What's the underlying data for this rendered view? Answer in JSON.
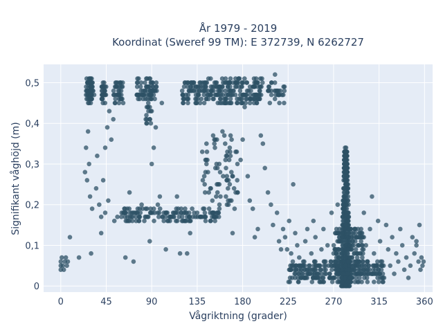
{
  "title_line1": "År 1979 - 2019",
  "title_line2": "Koordinat (Sweref 99 TM): E 372739, N 6262727",
  "colors": {
    "plot_bg": "#e5ecf6",
    "grid": "#ffffff",
    "marker": "#2e5166",
    "text": "#2a3f5f"
  },
  "chart_data": {
    "type": "scatter",
    "xlabel": "Vågriktning (grader)",
    "ylabel": "Signifikant våghöjd (m)",
    "xlim": [
      -17,
      368
    ],
    "ylim": [
      -0.015,
      0.545
    ],
    "xticks": [
      0,
      45,
      90,
      135,
      180,
      225,
      270,
      315,
      360
    ],
    "yticks": [
      0,
      0.1,
      0.2,
      0.3,
      0.4,
      0.5
    ],
    "ytick_labels": [
      "0",
      "0,1",
      "0,2",
      "0,3",
      "0,4",
      "0,5"
    ],
    "grid": true,
    "series": [
      {
        "marker_opacity": 0.75,
        "points": [
          [
            0,
            0.04
          ],
          [
            0,
            0.05
          ],
          [
            0,
            0.06
          ],
          [
            1,
            0.07
          ],
          [
            2,
            0.05
          ],
          [
            3,
            0.04
          ],
          [
            4,
            0.06
          ],
          [
            5,
            0.07
          ],
          [
            6,
            0.05
          ],
          [
            7,
            0.06
          ],
          [
            9,
            0.12
          ],
          [
            18,
            0.07
          ],
          [
            24,
            0.28
          ],
          [
            25,
            0.34
          ],
          [
            26,
            0.26
          ],
          [
            27,
            0.38
          ],
          [
            28,
            0.3
          ],
          [
            29,
            0.22
          ],
          [
            30,
            0.08
          ],
          [
            31,
            0.19
          ],
          [
            30,
            0.46
          ],
          [
            31,
            0.49
          ],
          [
            33,
            0.47
          ],
          [
            35,
            0.24
          ],
          [
            36,
            0.32
          ],
          [
            38,
            0.2
          ],
          [
            40,
            0.17
          ],
          [
            42,
            0.26
          ],
          [
            44,
            0.34
          ],
          [
            46,
            0.39
          ],
          [
            48,
            0.43
          ],
          [
            50,
            0.36
          ],
          [
            52,
            0.41
          ],
          [
            40,
            0.13
          ],
          [
            44,
            0.18
          ],
          [
            47,
            0.21
          ],
          [
            53,
            0.16
          ],
          [
            56,
            0.17
          ],
          [
            60,
            0.17
          ],
          [
            62,
            0.18
          ],
          [
            64,
            0.07
          ],
          [
            66,
            0.17
          ],
          [
            68,
            0.23
          ],
          [
            70,
            0.18
          ],
          [
            72,
            0.06
          ],
          [
            76,
            0.18
          ],
          [
            80,
            0.2
          ],
          [
            82,
            0.47
          ],
          [
            85,
            0.49
          ],
          [
            88,
            0.11
          ],
          [
            90,
            0.3
          ],
          [
            92,
            0.34
          ],
          [
            94,
            0.39
          ],
          [
            96,
            0.2
          ],
          [
            98,
            0.22
          ],
          [
            100,
            0.45
          ],
          [
            102,
            0.16
          ],
          [
            104,
            0.09
          ],
          [
            108,
            0.16
          ],
          [
            112,
            0.18
          ],
          [
            115,
            0.22
          ],
          [
            118,
            0.08
          ],
          [
            120,
            0.16
          ],
          [
            122,
            0.18
          ],
          [
            125,
            0.08
          ],
          [
            128,
            0.13
          ],
          [
            130,
            0.19
          ],
          [
            135,
            0.18
          ],
          [
            138,
            0.17
          ],
          [
            140,
            0.33
          ],
          [
            142,
            0.27
          ],
          [
            145,
            0.31
          ],
          [
            148,
            0.24
          ],
          [
            150,
            0.21
          ],
          [
            152,
            0.35
          ],
          [
            155,
            0.29
          ],
          [
            158,
            0.22
          ],
          [
            160,
            0.38
          ],
          [
            163,
            0.31
          ],
          [
            166,
            0.26
          ],
          [
            168,
            0.37
          ],
          [
            170,
            0.13
          ],
          [
            172,
            0.19
          ],
          [
            175,
            0.23
          ],
          [
            178,
            0.31
          ],
          [
            180,
            0.36
          ],
          [
            182,
            0.44
          ],
          [
            185,
            0.27
          ],
          [
            187,
            0.21
          ],
          [
            190,
            0.19
          ],
          [
            192,
            0.12
          ],
          [
            195,
            0.14
          ],
          [
            198,
            0.37
          ],
          [
            200,
            0.35
          ],
          [
            202,
            0.29
          ],
          [
            205,
            0.23
          ],
          [
            208,
            0.2
          ],
          [
            210,
            0.15
          ],
          [
            212,
            0.52
          ],
          [
            214,
            0.18
          ],
          [
            216,
            0.11
          ],
          [
            218,
            0.09
          ],
          [
            220,
            0.14
          ],
          [
            222,
            0.12
          ],
          [
            224,
            0.09
          ],
          [
            226,
            0.16
          ],
          [
            228,
            0.08
          ],
          [
            230,
            0.25
          ],
          [
            232,
            0.13
          ],
          [
            234,
            0.1
          ],
          [
            236,
            0.07
          ],
          [
            238,
            0.02
          ],
          [
            240,
            0.06
          ],
          [
            242,
            0.11
          ],
          [
            244,
            0.14
          ],
          [
            246,
            0.04
          ],
          [
            248,
            0.08
          ],
          [
            250,
            0.16
          ],
          [
            252,
            0.12
          ],
          [
            254,
            0.03
          ],
          [
            256,
            0.05
          ],
          [
            258,
            0.09
          ],
          [
            260,
            0.14
          ],
          [
            262,
            0.06
          ],
          [
            264,
            0.1
          ],
          [
            266,
            0.02
          ],
          [
            268,
            0.18
          ],
          [
            270,
            0.08
          ],
          [
            272,
            0.04
          ],
          [
            274,
            0.2
          ],
          [
            276,
            0.12
          ],
          [
            278,
            0.06
          ],
          [
            300,
            0.18
          ],
          [
            302,
            0.1
          ],
          [
            304,
            0.04
          ],
          [
            306,
            0.14
          ],
          [
            308,
            0.22
          ],
          [
            310,
            0.08
          ],
          [
            312,
            0.03
          ],
          [
            314,
            0.16
          ],
          [
            316,
            0.11
          ],
          [
            318,
            0.06
          ],
          [
            320,
            0.02
          ],
          [
            322,
            0.15
          ],
          [
            324,
            0.09
          ],
          [
            326,
            0.05
          ],
          [
            328,
            0.12
          ],
          [
            330,
            0.03
          ],
          [
            332,
            0.08
          ],
          [
            334,
            0.06
          ],
          [
            336,
            0.14
          ],
          [
            338,
            0.1
          ],
          [
            340,
            0.04
          ],
          [
            342,
            0.07
          ],
          [
            344,
            0.02
          ],
          [
            346,
            0.05
          ],
          [
            348,
            0.12
          ],
          [
            350,
            0.08
          ],
          [
            352,
            0.1
          ],
          [
            354,
            0.06
          ],
          [
            355,
            0.15
          ],
          [
            356,
            0.04
          ],
          [
            357,
            0.07
          ],
          [
            358,
            0.05
          ],
          [
            359,
            0.06
          ],
          [
            352,
            0.11
          ]
        ]
      }
    ],
    "clusters": [
      {
        "x_range": [
          25,
          32
        ],
        "y_range": [
          0.45,
          0.51
        ],
        "count": 70
      },
      {
        "x_range": [
          40,
          45
        ],
        "y_range": [
          0.45,
          0.5
        ],
        "count": 30
      },
      {
        "x_range": [
          52,
          62
        ],
        "y_range": [
          0.45,
          0.5
        ],
        "count": 40
      },
      {
        "x_range": [
          75,
          95
        ],
        "y_range": [
          0.46,
          0.51
        ],
        "count": 60
      },
      {
        "x_range": [
          120,
          200
        ],
        "y_range": [
          0.45,
          0.51
        ],
        "count": 260
      },
      {
        "x_range": [
          205,
          222
        ],
        "y_range": [
          0.45,
          0.5
        ],
        "count": 30
      },
      {
        "x_range": [
          60,
          160
        ],
        "y_range": [
          0.16,
          0.19
        ],
        "count": 140
      },
      {
        "x_range": [
          84,
          90
        ],
        "y_range": [
          0.4,
          0.48
        ],
        "count": 25
      },
      {
        "x_range": [
          140,
          175
        ],
        "y_range": [
          0.2,
          0.38
        ],
        "count": 60
      },
      {
        "x_range": [
          225,
          320
        ],
        "y_range": [
          0.01,
          0.06
        ],
        "count": 260
      },
      {
        "x_range": [
          275,
          290
        ],
        "y_range": [
          0.0,
          0.34
        ],
        "count": 380
      },
      {
        "x_range": [
          270,
          300
        ],
        "y_range": [
          0.02,
          0.14
        ],
        "count": 200
      }
    ]
  }
}
